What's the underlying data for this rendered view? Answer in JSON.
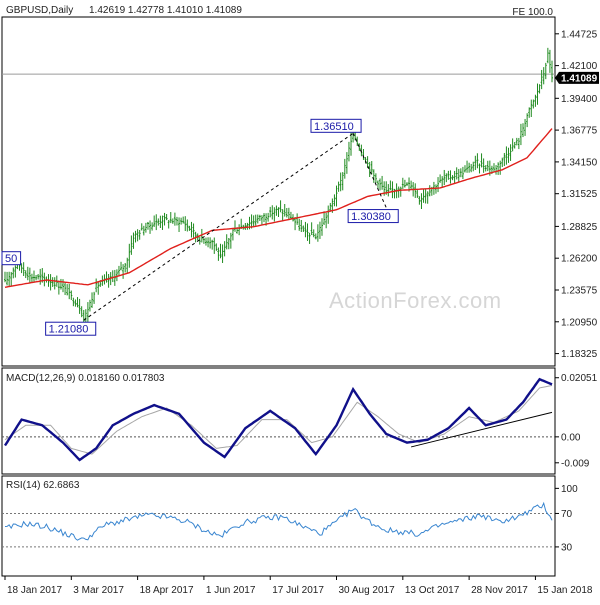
{
  "chart_data": {
    "type": "candlestick",
    "symbol": "GBPUSD,Daily",
    "ohlc_header": "1.42619 1.42778 1.41010 1.41089",
    "fe_label": "FE 100.0",
    "watermark": "ActionForex.com",
    "price_axis": {
      "range": [
        1.1763,
        1.457
      ],
      "ticks": [
        "1.44725",
        "1.42100",
        "1.39400",
        "1.36775",
        "1.34150",
        "1.31525",
        "1.28825",
        "1.26200",
        "1.23575",
        "1.20950",
        "1.18325"
      ],
      "tick_values": [
        1.44725,
        1.421,
        1.394,
        1.36775,
        1.3415,
        1.31525,
        1.28825,
        1.262,
        1.23575,
        1.2095,
        1.18325
      ],
      "last_price": "1.41089",
      "last_price_value": 1.41089,
      "fe_level": 1.414
    },
    "x_axis": {
      "bar_count": 265,
      "labels": [
        "18 Jan 2017",
        "3 Mar 2017",
        "18 Apr 2017",
        "1 Jun 2017",
        "17 Jul 2017",
        "30 Aug 2017",
        "13 Oct 2017",
        "28 Nov 2017",
        "15 Jan 2018"
      ],
      "label_bar_index": [
        0,
        32,
        64,
        96,
        128,
        160,
        192,
        224,
        256
      ]
    },
    "price_path": [
      [
        0,
        1.242
      ],
      [
        6,
        1.258
      ],
      [
        12,
        1.247
      ],
      [
        20,
        1.245
      ],
      [
        28,
        1.238
      ],
      [
        36,
        1.222
      ],
      [
        38,
        1.211
      ],
      [
        44,
        1.239
      ],
      [
        52,
        1.246
      ],
      [
        58,
        1.256
      ],
      [
        62,
        1.28
      ],
      [
        68,
        1.288
      ],
      [
        76,
        1.294
      ],
      [
        86,
        1.292
      ],
      [
        94,
        1.278
      ],
      [
        100,
        1.276
      ],
      [
        104,
        1.262
      ],
      [
        110,
        1.285
      ],
      [
        116,
        1.29
      ],
      [
        124,
        1.296
      ],
      [
        132,
        1.302
      ],
      [
        138,
        1.296
      ],
      [
        144,
        1.284
      ],
      [
        150,
        1.28
      ],
      [
        156,
        1.3
      ],
      [
        162,
        1.325
      ],
      [
        168,
        1.3651
      ],
      [
        172,
        1.35
      ],
      [
        178,
        1.33
      ],
      [
        184,
        1.316
      ],
      [
        190,
        1.321
      ],
      [
        196,
        1.323
      ],
      [
        200,
        1.311
      ],
      [
        206,
        1.32
      ],
      [
        212,
        1.328
      ],
      [
        220,
        1.332
      ],
      [
        228,
        1.341
      ],
      [
        236,
        1.335
      ],
      [
        242,
        1.348
      ],
      [
        248,
        1.36
      ],
      [
        252,
        1.38
      ],
      [
        256,
        1.395
      ],
      [
        260,
        1.415
      ],
      [
        262,
        1.43
      ],
      [
        264,
        1.412
      ]
    ],
    "moving_average_path": [
      [
        0,
        1.238
      ],
      [
        20,
        1.244
      ],
      [
        40,
        1.24
      ],
      [
        60,
        1.25
      ],
      [
        80,
        1.27
      ],
      [
        100,
        1.285
      ],
      [
        120,
        1.288
      ],
      [
        140,
        1.295
      ],
      [
        160,
        1.302
      ],
      [
        175,
        1.313
      ],
      [
        190,
        1.318
      ],
      [
        210,
        1.32
      ],
      [
        225,
        1.328
      ],
      [
        240,
        1.335
      ],
      [
        252,
        1.345
      ],
      [
        264,
        1.369
      ]
    ],
    "annotations": [
      {
        "label": "50",
        "bar": 0,
        "price": 1.262,
        "side": "left"
      },
      {
        "label": "1.21080",
        "bar": 38,
        "price": 1.2108,
        "side": "below"
      },
      {
        "label": "1.36510",
        "bar": 168,
        "price": 1.3651,
        "side": "above"
      },
      {
        "label": "1.30380",
        "bar": 184,
        "price": 1.3038,
        "side": "below"
      }
    ],
    "trendline_dashed": [
      [
        [
          38,
          1.2108
        ],
        [
          168,
          1.3651
        ]
      ],
      [
        [
          168,
          1.3651
        ],
        [
          184,
          1.3038
        ]
      ]
    ],
    "macd": {
      "title": "MACD(12,26,9) 0.018160 0.017803",
      "range": [
        -0.0115,
        0.0225
      ],
      "ticks": [
        "0.02051",
        "0.00",
        "-0.009"
      ],
      "tick_values": [
        0.02051,
        0.0,
        -0.009
      ],
      "macd_path": [
        [
          0,
          -0.003
        ],
        [
          8,
          0.006
        ],
        [
          18,
          0.004
        ],
        [
          28,
          -0.002
        ],
        [
          36,
          -0.008
        ],
        [
          44,
          -0.004
        ],
        [
          52,
          0.004
        ],
        [
          62,
          0.008
        ],
        [
          72,
          0.011
        ],
        [
          84,
          0.008
        ],
        [
          96,
          -0.002
        ],
        [
          106,
          -0.007
        ],
        [
          116,
          0.003
        ],
        [
          128,
          0.009
        ],
        [
          140,
          0.003
        ],
        [
          150,
          -0.006
        ],
        [
          160,
          0.004
        ],
        [
          168,
          0.0165
        ],
        [
          176,
          0.008
        ],
        [
          184,
          0.001
        ],
        [
          194,
          -0.002
        ],
        [
          204,
          -0.001
        ],
        [
          214,
          0.003
        ],
        [
          224,
          0.01
        ],
        [
          232,
          0.004
        ],
        [
          242,
          0.006
        ],
        [
          250,
          0.012
        ],
        [
          258,
          0.02
        ],
        [
          264,
          0.0182
        ]
      ],
      "signal_path": [
        [
          0,
          -0.001
        ],
        [
          10,
          0.004
        ],
        [
          22,
          0.004
        ],
        [
          32,
          -0.004
        ],
        [
          42,
          -0.006
        ],
        [
          54,
          0.002
        ],
        [
          66,
          0.007
        ],
        [
          78,
          0.01
        ],
        [
          90,
          0.004
        ],
        [
          102,
          -0.004
        ],
        [
          112,
          -0.003
        ],
        [
          124,
          0.006
        ],
        [
          136,
          0.006
        ],
        [
          148,
          -0.002
        ],
        [
          158,
          0.0
        ],
        [
          170,
          0.012
        ],
        [
          180,
          0.007
        ],
        [
          190,
          0.001
        ],
        [
          200,
          -0.002
        ],
        [
          212,
          0.001
        ],
        [
          224,
          0.007
        ],
        [
          236,
          0.005
        ],
        [
          248,
          0.009
        ],
        [
          258,
          0.017
        ],
        [
          264,
          0.0178
        ]
      ],
      "trendline": [
        [
          196,
          -0.0035
        ],
        [
          264,
          0.0085
        ]
      ]
    },
    "rsi": {
      "title": "RSI(14) 62.6863",
      "range": [
        0,
        110
      ],
      "ticks": [
        "100",
        "70",
        "30"
      ],
      "tick_values": [
        100,
        70,
        30
      ],
      "rsi_path": [
        [
          0,
          52
        ],
        [
          10,
          58
        ],
        [
          20,
          54
        ],
        [
          30,
          45
        ],
        [
          38,
          38
        ],
        [
          48,
          56
        ],
        [
          58,
          62
        ],
        [
          68,
          68
        ],
        [
          78,
          66
        ],
        [
          88,
          60
        ],
        [
          98,
          48
        ],
        [
          104,
          43
        ],
        [
          114,
          58
        ],
        [
          124,
          64
        ],
        [
          134,
          66
        ],
        [
          144,
          54
        ],
        [
          152,
          46
        ],
        [
          160,
          60
        ],
        [
          168,
          75
        ],
        [
          176,
          60
        ],
        [
          184,
          50
        ],
        [
          192,
          48
        ],
        [
          200,
          45
        ],
        [
          210,
          56
        ],
        [
          220,
          62
        ],
        [
          230,
          68
        ],
        [
          238,
          60
        ],
        [
          248,
          66
        ],
        [
          256,
          76
        ],
        [
          260,
          80
        ],
        [
          264,
          62.7
        ]
      ]
    },
    "colors": {
      "candle": "#1f8a1f",
      "moving_average": "#e0201c",
      "macd": "#10108a",
      "signal": "#a7a7a7",
      "rsi": "#3a86d0",
      "annotation": "#1a1aa8",
      "price_tag": "#000000",
      "trendline": "#000000"
    }
  }
}
